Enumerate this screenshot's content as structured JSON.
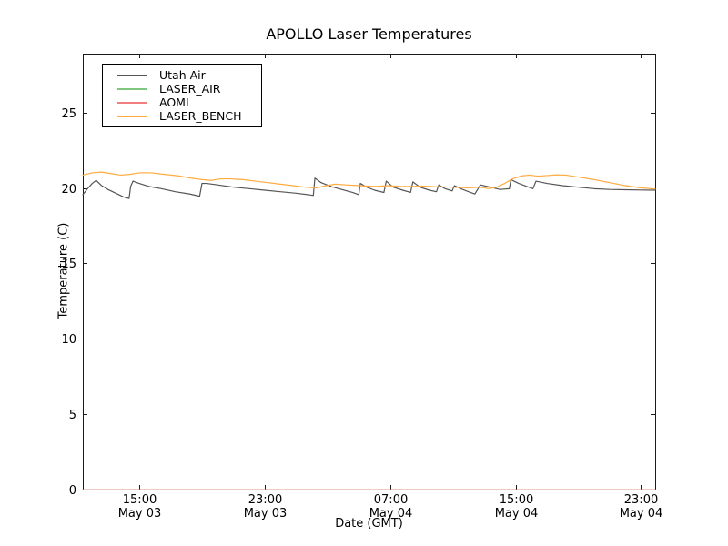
{
  "window": {
    "background_color": "#ffffff",
    "frame_color": "#1a1a1a"
  },
  "chart_data": {
    "type": "line",
    "title": "APOLLO Laser Temperatures",
    "xlabel": "Date (GMT)",
    "ylabel": "Temperature (C)",
    "grid": false,
    "legend_position": "upper left",
    "x_unit": "hours since May 03 00:00 GMT",
    "xlim": [
      11.4,
      47.9
    ],
    "ylim": [
      0,
      28.9
    ],
    "yticks": [
      0,
      5,
      10,
      15,
      20,
      25
    ],
    "xticks": [
      {
        "t": 15,
        "time": "15:00",
        "date": "May 03"
      },
      {
        "t": 23,
        "time": "23:00",
        "date": "May 03"
      },
      {
        "t": 31,
        "time": "07:00",
        "date": "May 04"
      },
      {
        "t": 39,
        "time": "15:00",
        "date": "May 04"
      },
      {
        "t": 47,
        "time": "23:00",
        "date": "May 04"
      }
    ],
    "series": [
      {
        "name": "Utah Air",
        "color": "#555555",
        "width": 1.2,
        "opacity": 1,
        "points": [
          [
            11.4,
            19.55
          ],
          [
            11.7,
            19.95
          ],
          [
            12.0,
            20.3
          ],
          [
            12.25,
            20.5
          ],
          [
            12.6,
            20.15
          ],
          [
            13.0,
            19.9
          ],
          [
            13.5,
            19.65
          ],
          [
            14.0,
            19.4
          ],
          [
            14.35,
            19.3
          ],
          [
            14.45,
            20.1
          ],
          [
            14.6,
            20.45
          ],
          [
            15.0,
            20.3
          ],
          [
            15.6,
            20.1
          ],
          [
            16.4,
            19.95
          ],
          [
            17.3,
            19.75
          ],
          [
            18.2,
            19.6
          ],
          [
            18.85,
            19.45
          ],
          [
            19.0,
            20.3
          ],
          [
            19.3,
            20.3
          ],
          [
            20.0,
            20.2
          ],
          [
            21.0,
            20.05
          ],
          [
            22.0,
            19.95
          ],
          [
            23.0,
            19.85
          ],
          [
            24.0,
            19.75
          ],
          [
            25.0,
            19.65
          ],
          [
            25.8,
            19.55
          ],
          [
            26.1,
            19.5
          ],
          [
            26.2,
            20.65
          ],
          [
            26.6,
            20.35
          ],
          [
            27.2,
            20.1
          ],
          [
            27.9,
            19.9
          ],
          [
            28.6,
            19.7
          ],
          [
            29.0,
            19.55
          ],
          [
            29.1,
            20.3
          ],
          [
            29.5,
            20.05
          ],
          [
            30.0,
            19.85
          ],
          [
            30.6,
            19.7
          ],
          [
            30.75,
            20.45
          ],
          [
            31.2,
            20.05
          ],
          [
            31.8,
            19.85
          ],
          [
            32.3,
            19.7
          ],
          [
            32.45,
            20.4
          ],
          [
            32.9,
            20.05
          ],
          [
            33.5,
            19.85
          ],
          [
            33.95,
            19.75
          ],
          [
            34.1,
            20.2
          ],
          [
            34.5,
            19.95
          ],
          [
            34.95,
            19.8
          ],
          [
            35.1,
            20.15
          ],
          [
            35.5,
            19.95
          ],
          [
            36.0,
            19.75
          ],
          [
            36.4,
            19.6
          ],
          [
            36.75,
            20.2
          ],
          [
            37.4,
            20.05
          ],
          [
            38.0,
            19.9
          ],
          [
            38.6,
            19.95
          ],
          [
            38.7,
            20.55
          ],
          [
            39.2,
            20.3
          ],
          [
            39.7,
            20.1
          ],
          [
            40.1,
            19.95
          ],
          [
            40.3,
            20.45
          ],
          [
            41.0,
            20.3
          ],
          [
            42.0,
            20.15
          ],
          [
            43.0,
            20.05
          ],
          [
            44.0,
            19.95
          ],
          [
            45.0,
            19.9
          ],
          [
            46.0,
            19.88
          ],
          [
            47.0,
            19.86
          ],
          [
            47.9,
            19.85
          ]
        ]
      },
      {
        "name": "LASER_AIR",
        "color": "#7ec77e",
        "width": 1,
        "opacity": 0.75,
        "points": [
          [
            11.4,
            0
          ],
          [
            47.9,
            0
          ]
        ]
      },
      {
        "name": "AOML",
        "color": "#f08080",
        "width": 1,
        "opacity": 0.75,
        "points": [
          [
            11.4,
            0
          ],
          [
            47.9,
            0
          ]
        ]
      },
      {
        "name": "LASER_BENCH",
        "color": "#ffab40",
        "width": 1.2,
        "opacity": 1,
        "points": [
          [
            11.4,
            20.85
          ],
          [
            12.0,
            21.0
          ],
          [
            12.6,
            21.05
          ],
          [
            13.2,
            20.95
          ],
          [
            13.8,
            20.85
          ],
          [
            14.4,
            20.9
          ],
          [
            15.0,
            21.0
          ],
          [
            15.8,
            21.0
          ],
          [
            16.6,
            20.9
          ],
          [
            17.5,
            20.8
          ],
          [
            18.3,
            20.65
          ],
          [
            19.0,
            20.55
          ],
          [
            19.6,
            20.5
          ],
          [
            20.2,
            20.6
          ],
          [
            20.8,
            20.6
          ],
          [
            21.6,
            20.55
          ],
          [
            22.4,
            20.45
          ],
          [
            23.2,
            20.35
          ],
          [
            24.0,
            20.25
          ],
          [
            24.8,
            20.15
          ],
          [
            25.6,
            20.05
          ],
          [
            26.3,
            20.0
          ],
          [
            26.9,
            20.15
          ],
          [
            27.5,
            20.25
          ],
          [
            28.2,
            20.2
          ],
          [
            29.0,
            20.15
          ],
          [
            30.0,
            20.1
          ],
          [
            30.9,
            20.15
          ],
          [
            31.6,
            20.1
          ],
          [
            32.4,
            20.1
          ],
          [
            33.0,
            20.12
          ],
          [
            34.0,
            20.08
          ],
          [
            35.0,
            20.05
          ],
          [
            36.0,
            20.0
          ],
          [
            36.7,
            20.05
          ],
          [
            37.3,
            19.95
          ],
          [
            37.8,
            20.05
          ],
          [
            38.3,
            20.3
          ],
          [
            38.8,
            20.6
          ],
          [
            39.4,
            20.8
          ],
          [
            39.9,
            20.85
          ],
          [
            40.4,
            20.78
          ],
          [
            41.0,
            20.82
          ],
          [
            41.6,
            20.87
          ],
          [
            42.2,
            20.85
          ],
          [
            43.0,
            20.72
          ],
          [
            44.0,
            20.55
          ],
          [
            45.0,
            20.35
          ],
          [
            46.0,
            20.15
          ],
          [
            47.0,
            20.0
          ],
          [
            47.9,
            19.93
          ]
        ]
      }
    ]
  }
}
